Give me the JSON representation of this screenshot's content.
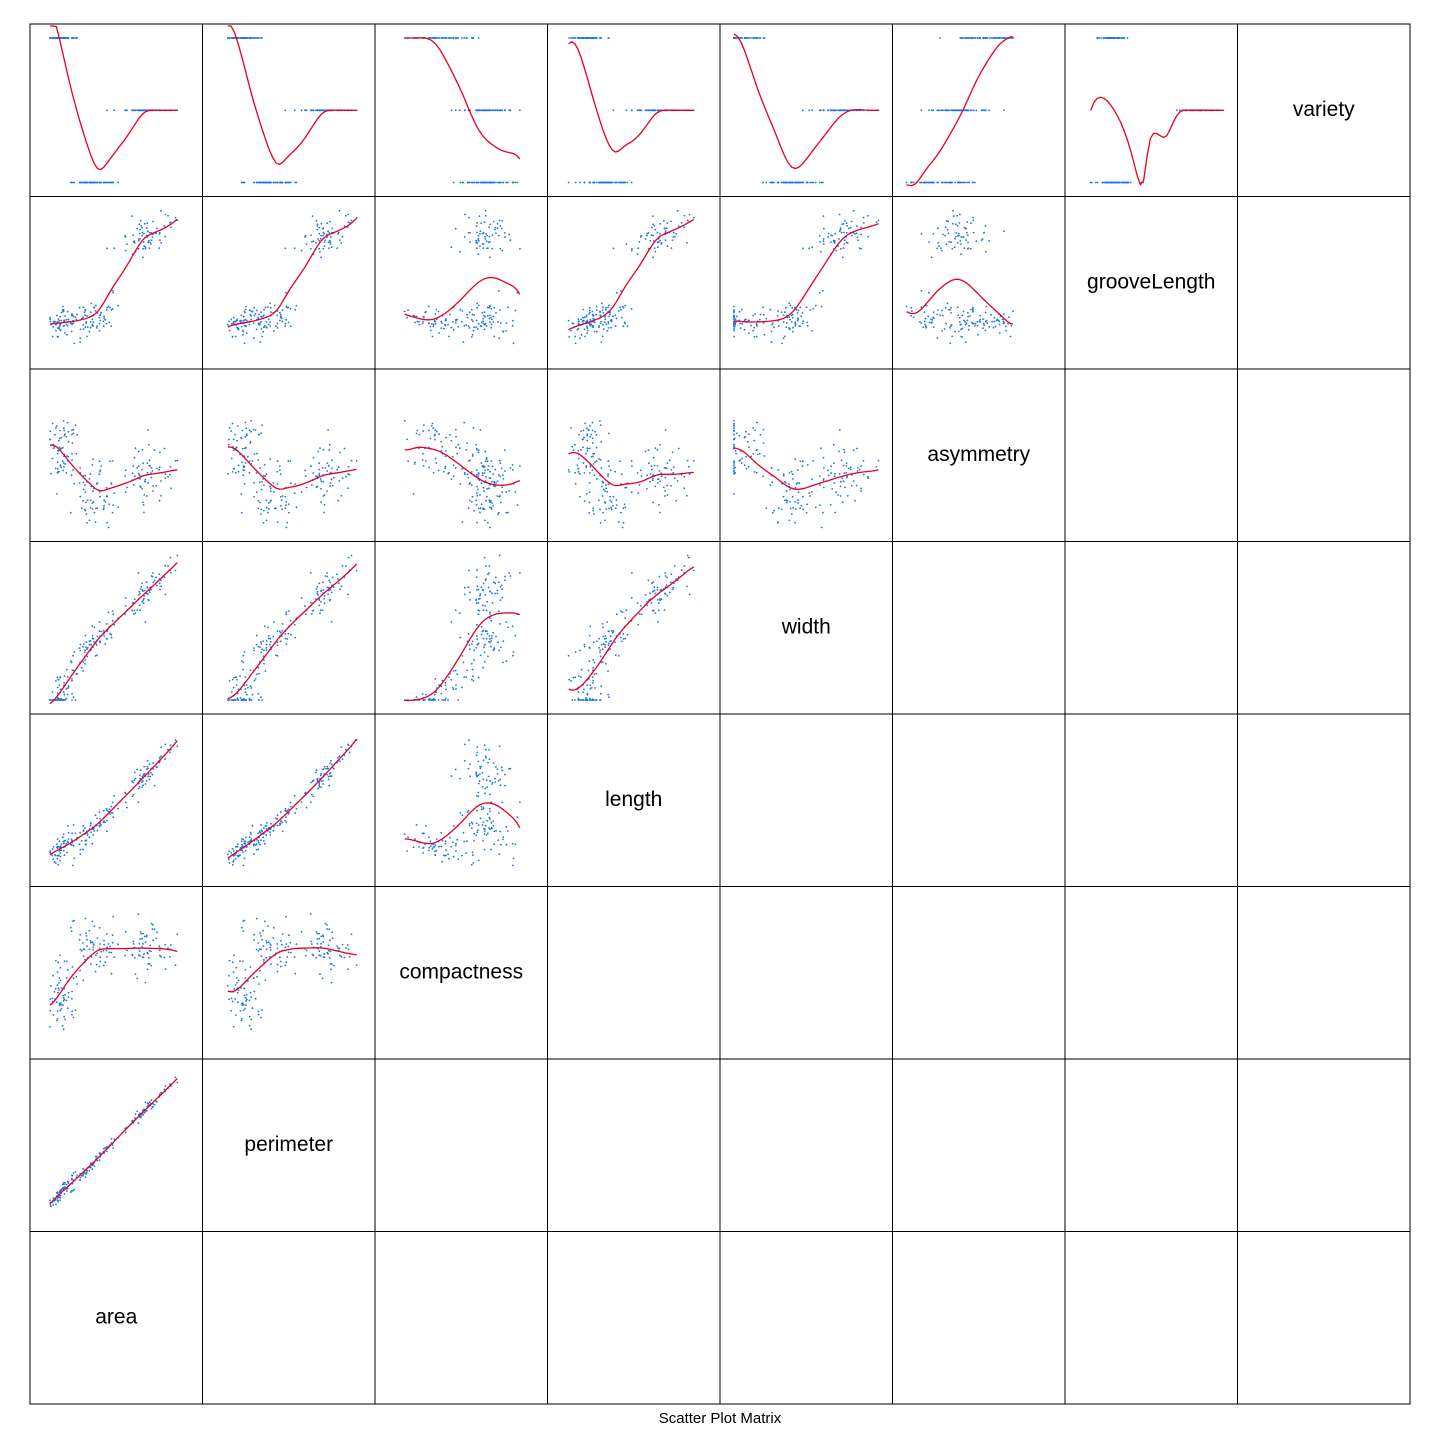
{
  "chart_data": {
    "type": "scatter",
    "title": "Scatter Plot Matrix",
    "variables": [
      "area",
      "perimeter",
      "compactness",
      "length",
      "width",
      "asymmetry",
      "grooveLength",
      "variety"
    ],
    "diagonal": "variable names",
    "lower_panels": "scatter with loess smoother",
    "upper_panels": "empty",
    "point_color": "#1a73e8",
    "smooth_color": "#e8001c",
    "n_observations": 199,
    "ranges": {
      "area": [
        10.59,
        21.18
      ],
      "perimeter": [
        12.41,
        17.25
      ],
      "compactness": [
        0.8081,
        0.9183
      ],
      "length": [
        4.899,
        6.675
      ],
      "width": [
        2.63,
        4.033
      ],
      "asymmetry": [
        0.765,
        8.456
      ],
      "grooveLength": [
        4.519,
        6.55
      ],
      "variety": [
        1,
        3
      ]
    },
    "variety_levels": [
      1,
      2,
      3
    ]
  }
}
